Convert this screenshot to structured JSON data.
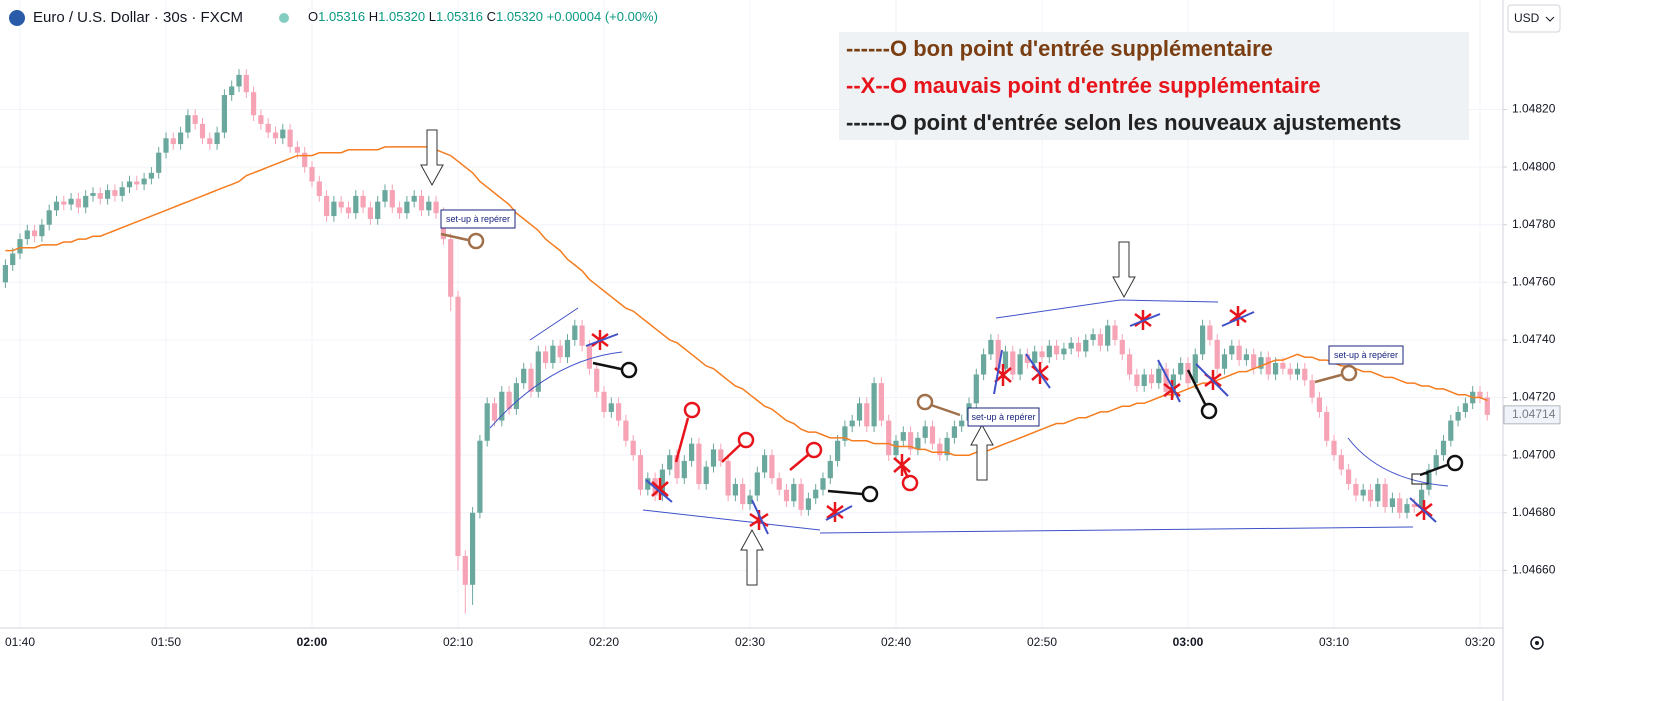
{
  "header": {
    "symbol": "Euro / U.S. Dollar · 30s · FXCM",
    "ohlc": [
      {
        "label": "O",
        "value": "1.05316"
      },
      {
        "label": "H",
        "value": "1.05320"
      },
      {
        "label": "L",
        "value": "1.05316"
      },
      {
        "label": "C",
        "value": "1.05320"
      }
    ],
    "change": "+0.00004 (+0.00%)",
    "currency": "USD"
  },
  "legend": [
    {
      "prefix": "------O",
      "text": "bon point d'entrée supplémentaire",
      "color": "#7a3e12"
    },
    {
      "prefix": "--X--O",
      "text": "mauvais point d'entrée supplémentaire",
      "color": "#e8141c"
    },
    {
      "prefix": "------O",
      "text": "point d'entrée selon les nouveaux ajustements",
      "color": "#222222"
    }
  ],
  "annotations": [
    "set-up à repérer",
    "set-up à repérer",
    "set-up à repérer"
  ],
  "chart_data": {
    "type": "candlestick",
    "up_color": "#6aa79d",
    "down_color": "#f5a3b5",
    "categories": [
      null,
      null,
      "01:40",
      null,
      null,
      null,
      null,
      null,
      null,
      null,
      null,
      null,
      null,
      null,
      null,
      null,
      null,
      null,
      null,
      null,
      null,
      null,
      "01:50",
      null,
      null,
      null,
      null,
      null,
      null,
      null,
      null,
      null,
      null,
      null,
      null,
      null,
      null,
      null,
      null,
      null,
      null,
      null,
      "02:00",
      null,
      null,
      null,
      null,
      null,
      null,
      null,
      null,
      null,
      null,
      null,
      null,
      null,
      null,
      null,
      null,
      null,
      null,
      null,
      "02:10",
      null,
      null,
      null,
      null,
      null,
      null,
      null,
      null,
      null,
      null,
      null,
      null,
      null,
      null,
      null,
      null,
      null,
      null,
      null,
      "02:20",
      null,
      null,
      null,
      null,
      null,
      null,
      null,
      null,
      null,
      null,
      null,
      null,
      null,
      null,
      null,
      null,
      null,
      null,
      null,
      "02:30",
      null,
      null,
      null,
      null,
      null,
      null,
      null,
      null,
      null,
      null,
      null,
      null,
      null,
      null,
      null,
      null,
      null,
      null,
      null,
      "02:40",
      null,
      null,
      null,
      null,
      null,
      null,
      null,
      null,
      null,
      null,
      null,
      null,
      null,
      null,
      null,
      null,
      null,
      null,
      null,
      "02:50",
      null,
      null,
      null,
      null,
      null,
      null,
      null,
      null,
      null,
      null,
      null,
      null,
      null,
      null,
      null,
      null,
      null,
      null,
      null,
      "03:00",
      null,
      null,
      null,
      null,
      null,
      null,
      null,
      null,
      null,
      null,
      null,
      null,
      null,
      null,
      null,
      null,
      null,
      null,
      null,
      "03:10",
      null,
      null,
      null,
      null,
      null,
      null,
      null,
      null,
      null,
      null,
      null,
      null,
      null,
      null,
      null,
      null,
      null,
      null,
      null,
      "03:20",
      null
    ],
    "open": [
      1.0476,
      1.04766,
      1.0477,
      1.04775,
      1.04778,
      1.04776,
      1.0478,
      1.04785,
      1.04788,
      1.04787,
      1.04789,
      1.04786,
      1.0479,
      1.04791,
      1.04789,
      1.04792,
      1.0479,
      1.04793,
      1.04795,
      1.04794,
      1.04796,
      1.04798,
      1.04805,
      1.0481,
      1.04808,
      1.04812,
      1.04818,
      1.04815,
      1.0481,
      1.04808,
      1.04812,
      1.04825,
      1.04828,
      1.04832,
      1.04826,
      1.04818,
      1.04815,
      1.04812,
      1.0481,
      1.04813,
      1.04807,
      1.04805,
      1.048,
      1.04795,
      1.0479,
      1.04783,
      1.04788,
      1.04786,
      1.04784,
      1.0479,
      1.04786,
      1.04782,
      1.04788,
      1.04792,
      1.04786,
      1.04784,
      1.04788,
      1.0479,
      1.04785,
      1.04788,
      1.04784,
      1.04775,
      1.04755,
      1.04665,
      1.04655,
      1.0468,
      1.04705,
      1.04718,
      1.04712,
      1.04722,
      1.04716,
      1.04725,
      1.0473,
      1.04722,
      1.04736,
      1.04732,
      1.04738,
      1.04734,
      1.0474,
      1.04745,
      1.04738,
      1.0473,
      1.04722,
      1.04715,
      1.04718,
      1.04712,
      1.04705,
      1.047,
      1.04688,
      1.04692,
      1.04686,
      1.04695,
      1.047,
      1.04692,
      1.04698,
      1.04704,
      1.0469,
      1.04696,
      1.04702,
      1.04698,
      1.04686,
      1.0469,
      1.04683,
      1.04686,
      1.04694,
      1.047,
      1.04692,
      1.04688,
      1.04684,
      1.0469,
      1.04681,
      1.04685,
      1.04688,
      1.04692,
      1.04698,
      1.04705,
      1.0471,
      1.04712,
      1.04718,
      1.0471,
      1.04725,
      1.04712,
      1.047,
      1.04705,
      1.04708,
      1.04702,
      1.04706,
      1.0471,
      1.04704,
      1.047,
      1.04706,
      1.0471,
      1.04712,
      1.04718,
      1.04728,
      1.04735,
      1.0474,
      1.0473,
      1.04736,
      1.04728,
      1.04735,
      1.04732,
      1.04736,
      1.04734,
      1.04738,
      1.04735,
      1.04737,
      1.04739,
      1.04736,
      1.0474,
      1.04742,
      1.04738,
      1.04745,
      1.0474,
      1.04735,
      1.04728,
      1.04724,
      1.04728,
      1.04725,
      1.0473,
      1.04722,
      1.04728,
      1.04732,
      1.04725,
      1.04735,
      1.04745,
      1.0474,
      1.0473,
      1.04735,
      1.04738,
      1.04733,
      1.04735,
      1.0473,
      1.04734,
      1.04728,
      1.04732,
      1.0473,
      1.04728,
      1.0473,
      1.04726,
      1.0472,
      1.04715,
      1.04705,
      1.047,
      1.04695,
      1.0469,
      1.04686,
      1.04688,
      1.04684,
      1.0469,
      1.04682,
      1.04685,
      1.0468,
      1.04683,
      1.04682,
      1.04688,
      1.04695,
      1.047,
      1.04705,
      1.04712,
      1.04715,
      1.04718,
      1.04722,
      1.0472
    ],
    "high": [
      1.04768,
      1.04772,
      1.04777,
      1.0478,
      1.0478,
      1.04782,
      1.04787,
      1.0479,
      1.0479,
      1.04791,
      1.04791,
      1.04792,
      1.04793,
      1.04793,
      1.04794,
      1.04794,
      1.04795,
      1.04797,
      1.04797,
      1.04798,
      1.048,
      1.04807,
      1.04812,
      1.04812,
      1.04814,
      1.0482,
      1.0482,
      1.04817,
      1.04812,
      1.04814,
      1.04827,
      1.0483,
      1.04834,
      1.04834,
      1.04828,
      1.0482,
      1.04817,
      1.04814,
      1.04815,
      1.04815,
      1.04809,
      1.04807,
      1.04802,
      1.04797,
      1.04792,
      1.0479,
      1.0479,
      1.04788,
      1.04792,
      1.04792,
      1.04788,
      1.0479,
      1.04794,
      1.04794,
      1.04788,
      1.0479,
      1.04792,
      1.04792,
      1.0479,
      1.0479,
      1.04786,
      1.04777,
      1.04757,
      1.04667,
      1.04682,
      1.04707,
      1.0472,
      1.0472,
      1.04724,
      1.04724,
      1.04727,
      1.04732,
      1.04732,
      1.04738,
      1.04738,
      1.0474,
      1.0474,
      1.04742,
      1.04747,
      1.04747,
      1.0474,
      1.04732,
      1.04724,
      1.0472,
      1.0472,
      1.04714,
      1.04707,
      1.04702,
      1.04694,
      1.04694,
      1.04697,
      1.04702,
      1.04702,
      1.047,
      1.04706,
      1.04706,
      1.04698,
      1.04704,
      1.04704,
      1.047,
      1.04692,
      1.04692,
      1.04688,
      1.04696,
      1.04702,
      1.04702,
      1.04694,
      1.0469,
      1.04692,
      1.04692,
      1.04687,
      1.0469,
      1.04694,
      1.047,
      1.04707,
      1.04712,
      1.04714,
      1.0472,
      1.0472,
      1.04727,
      1.04727,
      1.04714,
      1.04707,
      1.0471,
      1.0471,
      1.04708,
      1.04712,
      1.04712,
      1.04706,
      1.04708,
      1.04712,
      1.04714,
      1.0472,
      1.0473,
      1.04737,
      1.04742,
      1.04742,
      1.04738,
      1.04738,
      1.04737,
      1.04737,
      1.04738,
      1.04738,
      1.0474,
      1.0474,
      1.04739,
      1.04741,
      1.04741,
      1.04742,
      1.04744,
      1.04744,
      1.04747,
      1.04747,
      1.04742,
      1.04737,
      1.0473,
      1.0473,
      1.0473,
      1.04732,
      1.04732,
      1.0473,
      1.04734,
      1.04734,
      1.04737,
      1.04747,
      1.04747,
      1.04742,
      1.04737,
      1.0474,
      1.0474,
      1.04737,
      1.04737,
      1.04736,
      1.04736,
      1.04734,
      1.04734,
      1.04732,
      1.04732,
      1.04732,
      1.04728,
      1.04722,
      1.04717,
      1.04707,
      1.04702,
      1.04697,
      1.04692,
      1.0469,
      1.0469,
      1.04692,
      1.04692,
      1.04687,
      1.04687,
      1.04685,
      1.04685,
      1.0469,
      1.04697,
      1.04702,
      1.04707,
      1.04714,
      1.04717,
      1.0472,
      1.04724,
      1.04724,
      1.04722
    ],
    "low": [
      1.04758,
      1.04764,
      1.04768,
      1.04773,
      1.04774,
      1.04774,
      1.04778,
      1.04783,
      1.04785,
      1.04785,
      1.04784,
      1.04784,
      1.04788,
      1.04787,
      1.04787,
      1.04788,
      1.04788,
      1.04791,
      1.04792,
      1.04792,
      1.04794,
      1.04796,
      1.04803,
      1.04806,
      1.04806,
      1.0481,
      1.04813,
      1.04808,
      1.04806,
      1.04806,
      1.0481,
      1.04823,
      1.04826,
      1.04824,
      1.04816,
      1.04813,
      1.0481,
      1.04808,
      1.04808,
      1.04805,
      1.04803,
      1.04798,
      1.04793,
      1.04788,
      1.04781,
      1.04781,
      1.04784,
      1.04782,
      1.04782,
      1.04784,
      1.0478,
      1.0478,
      1.04786,
      1.04784,
      1.04782,
      1.04782,
      1.04786,
      1.04783,
      1.04783,
      1.04782,
      1.04773,
      1.0475,
      1.0466,
      1.04645,
      1.04648,
      1.04678,
      1.04703,
      1.0471,
      1.0471,
      1.04714,
      1.04714,
      1.04723,
      1.0472,
      1.0472,
      1.0473,
      1.0473,
      1.04732,
      1.04732,
      1.04738,
      1.04736,
      1.04728,
      1.0472,
      1.04713,
      1.04713,
      1.0471,
      1.04703,
      1.04698,
      1.04686,
      1.04686,
      1.04684,
      1.04684,
      1.04693,
      1.0469,
      1.0469,
      1.04696,
      1.04688,
      1.04688,
      1.04694,
      1.04696,
      1.04684,
      1.04684,
      1.04681,
      1.04681,
      1.04684,
      1.04692,
      1.0469,
      1.04686,
      1.04682,
      1.04682,
      1.04679,
      1.04679,
      1.04683,
      1.04686,
      1.0469,
      1.04696,
      1.04703,
      1.04708,
      1.0471,
      1.04708,
      1.04708,
      1.0471,
      1.04698,
      1.04698,
      1.04703,
      1.047,
      1.047,
      1.04704,
      1.04702,
      1.04698,
      1.04698,
      1.04704,
      1.04708,
      1.0471,
      1.04716,
      1.04726,
      1.04733,
      1.04728,
      1.04728,
      1.04726,
      1.04726,
      1.0473,
      1.0473,
      1.04732,
      1.04732,
      1.04733,
      1.04733,
      1.04735,
      1.04734,
      1.04734,
      1.04738,
      1.04736,
      1.04736,
      1.04738,
      1.04733,
      1.04726,
      1.04722,
      1.04722,
      1.04723,
      1.04723,
      1.0472,
      1.0472,
      1.04726,
      1.04723,
      1.04723,
      1.04733,
      1.04738,
      1.04728,
      1.04728,
      1.04733,
      1.04731,
      1.04731,
      1.04728,
      1.04728,
      1.04726,
      1.04726,
      1.04728,
      1.04726,
      1.04726,
      1.04724,
      1.04718,
      1.04713,
      1.04703,
      1.04698,
      1.04693,
      1.04688,
      1.04684,
      1.04684,
      1.04682,
      1.04682,
      1.0468,
      1.0468,
      1.04678,
      1.04678,
      1.0468,
      1.0468,
      1.04686,
      1.04693,
      1.04698,
      1.04703,
      1.0471,
      1.04713,
      1.04716,
      1.04718,
      1.04712
    ],
    "close": [
      1.04766,
      1.0477,
      1.04775,
      1.04778,
      1.04776,
      1.0478,
      1.04785,
      1.04788,
      1.04787,
      1.04789,
      1.04786,
      1.0479,
      1.04791,
      1.04789,
      1.04792,
      1.0479,
      1.04793,
      1.04795,
      1.04794,
      1.04796,
      1.04798,
      1.04805,
      1.0481,
      1.04808,
      1.04812,
      1.04818,
      1.04815,
      1.0481,
      1.04808,
      1.04812,
      1.04825,
      1.04828,
      1.04832,
      1.04826,
      1.04818,
      1.04815,
      1.04812,
      1.0481,
      1.04813,
      1.04807,
      1.04805,
      1.048,
      1.04795,
      1.0479,
      1.04783,
      1.04788,
      1.04786,
      1.04784,
      1.0479,
      1.04786,
      1.04782,
      1.04788,
      1.04792,
      1.04786,
      1.04784,
      1.04788,
      1.0479,
      1.04785,
      1.04788,
      1.04784,
      1.04775,
      1.04755,
      1.04665,
      1.04655,
      1.0468,
      1.04705,
      1.04718,
      1.04712,
      1.04722,
      1.04716,
      1.04725,
      1.0473,
      1.04722,
      1.04736,
      1.04732,
      1.04738,
      1.04734,
      1.0474,
      1.04745,
      1.04738,
      1.0473,
      1.04722,
      1.04715,
      1.04718,
      1.04712,
      1.04705,
      1.047,
      1.04688,
      1.04692,
      1.04686,
      1.04695,
      1.047,
      1.04692,
      1.04698,
      1.04704,
      1.0469,
      1.04696,
      1.04702,
      1.04698,
      1.04686,
      1.0469,
      1.04683,
      1.04686,
      1.04694,
      1.047,
      1.04692,
      1.04688,
      1.04684,
      1.0469,
      1.04681,
      1.04685,
      1.04688,
      1.04692,
      1.04698,
      1.04705,
      1.0471,
      1.04712,
      1.04718,
      1.0471,
      1.04725,
      1.04712,
      1.047,
      1.04705,
      1.04708,
      1.04702,
      1.04706,
      1.0471,
      1.04704,
      1.047,
      1.04706,
      1.0471,
      1.04712,
      1.04718,
      1.04728,
      1.04735,
      1.0474,
      1.0473,
      1.04736,
      1.04728,
      1.04735,
      1.04732,
      1.04736,
      1.04734,
      1.04738,
      1.04735,
      1.04737,
      1.04739,
      1.04736,
      1.0474,
      1.04742,
      1.04738,
      1.04745,
      1.0474,
      1.04735,
      1.04728,
      1.04724,
      1.04728,
      1.04725,
      1.0473,
      1.04722,
      1.04728,
      1.04732,
      1.04725,
      1.04735,
      1.04745,
      1.0474,
      1.0473,
      1.04735,
      1.04738,
      1.04733,
      1.04735,
      1.0473,
      1.04734,
      1.04728,
      1.04732,
      1.0473,
      1.04728,
      1.0473,
      1.04726,
      1.0472,
      1.04715,
      1.04705,
      1.047,
      1.04695,
      1.0469,
      1.04686,
      1.04688,
      1.04684,
      1.0469,
      1.04682,
      1.04685,
      1.0468,
      1.04683,
      1.04682,
      1.04688,
      1.04695,
      1.047,
      1.04705,
      1.04712,
      1.04715,
      1.04718,
      1.04722,
      1.0472,
      1.04714
    ],
    "moving_average": {
      "color": "#f57c1f",
      "values": [
        1.04771,
        1.04771,
        1.04772,
        1.04772,
        1.04772,
        1.04773,
        1.04773,
        1.04773,
        1.04774,
        1.04774,
        1.04775,
        1.04775,
        1.04776,
        1.04776,
        1.04777,
        1.04778,
        1.04779,
        1.0478,
        1.04781,
        1.04782,
        1.04783,
        1.04784,
        1.04785,
        1.04786,
        1.04787,
        1.04788,
        1.04789,
        1.0479,
        1.04791,
        1.04792,
        1.04793,
        1.04794,
        1.04795,
        1.04797,
        1.04798,
        1.04799,
        1.048,
        1.04801,
        1.04802,
        1.04803,
        1.04804,
        1.04804,
        1.04804,
        1.04805,
        1.04805,
        1.04805,
        1.04805,
        1.04806,
        1.04806,
        1.04806,
        1.04806,
        1.04806,
        1.04807,
        1.04807,
        1.04807,
        1.04807,
        1.04807,
        1.04807,
        1.04807,
        1.04806,
        1.04805,
        1.04804,
        1.04802,
        1.048,
        1.04798,
        1.04795,
        1.04793,
        1.04791,
        1.04789,
        1.04787,
        1.04784,
        1.04782,
        1.0478,
        1.04778,
        1.04775,
        1.04773,
        1.04771,
        1.04768,
        1.04766,
        1.04764,
        1.04761,
        1.04759,
        1.04757,
        1.04755,
        1.04753,
        1.04751,
        1.0475,
        1.04748,
        1.04746,
        1.04744,
        1.04742,
        1.0474,
        1.04739,
        1.04737,
        1.04735,
        1.04733,
        1.04731,
        1.0473,
        1.04728,
        1.04726,
        1.04724,
        1.04723,
        1.04721,
        1.04719,
        1.04717,
        1.04716,
        1.04714,
        1.04712,
        1.04711,
        1.04709,
        1.04708,
        1.04708,
        1.04707,
        1.04706,
        1.04706,
        1.04706,
        1.04705,
        1.04705,
        1.04705,
        1.04704,
        1.04704,
        1.04704,
        1.04703,
        1.04703,
        1.04703,
        1.04702,
        1.04702,
        1.04701,
        1.04701,
        1.04701,
        1.047,
        1.047,
        1.047,
        1.04701,
        1.04701,
        1.04702,
        1.04703,
        1.04704,
        1.04705,
        1.04706,
        1.04707,
        1.04708,
        1.04709,
        1.0471,
        1.04711,
        1.04711,
        1.04712,
        1.04713,
        1.04713,
        1.04714,
        1.04715,
        1.04715,
        1.04716,
        1.04717,
        1.04717,
        1.04718,
        1.04718,
        1.04719,
        1.0472,
        1.04721,
        1.04721,
        1.04722,
        1.04723,
        1.04724,
        1.04725,
        1.04725,
        1.04726,
        1.04727,
        1.04728,
        1.04729,
        1.04729,
        1.0473,
        1.04731,
        1.04732,
        1.04733,
        1.04733,
        1.04734,
        1.04735,
        1.04734,
        1.04734,
        1.04733,
        1.04733,
        1.04732,
        1.04731,
        1.04731,
        1.0473,
        1.04729,
        1.04729,
        1.04728,
        1.04727,
        1.04727,
        1.04726,
        1.04725,
        1.04725,
        1.04724,
        1.04724,
        1.04723,
        1.04723,
        1.04722,
        1.04721,
        1.04721,
        1.0472,
        1.0472,
        1.04719
      ]
    },
    "ylim": [
      1.0464,
      1.04858
    ],
    "yticks": [
      {
        "value": 1.0466,
        "label": "1.04660"
      },
      {
        "value": 1.0468,
        "label": "1.04680"
      },
      {
        "value": 1.047,
        "label": "1.04700"
      },
      {
        "value": 1.0472,
        "label": "1.04720"
      },
      {
        "value": 1.0474,
        "label": "1.04740"
      },
      {
        "value": 1.0476,
        "label": "1.04760"
      },
      {
        "value": 1.0478,
        "label": "1.04780"
      },
      {
        "value": 1.048,
        "label": "1.04800"
      },
      {
        "value": 1.0482,
        "label": "1.04820"
      }
    ],
    "grid": true
  }
}
